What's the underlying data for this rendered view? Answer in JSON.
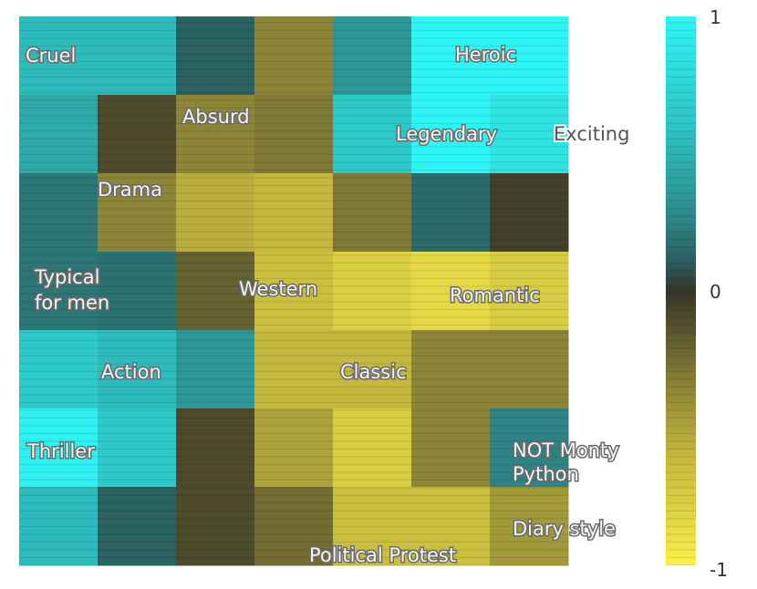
{
  "chart_data": {
    "type": "heatmap",
    "title": "",
    "rows": 7,
    "cols": 7,
    "values": [
      [
        0.55,
        0.55,
        0.12,
        -0.35,
        0.35,
        1.0,
        1.0
      ],
      [
        0.45,
        -0.1,
        -0.35,
        -0.3,
        0.65,
        1.0,
        0.85
      ],
      [
        0.2,
        -0.35,
        -0.55,
        -0.6,
        -0.3,
        0.15,
        -0.05
      ],
      [
        0.2,
        0.18,
        -0.2,
        -0.65,
        -0.78,
        -0.85,
        -0.75
      ],
      [
        0.65,
        0.55,
        0.35,
        -0.6,
        -0.6,
        -0.35,
        -0.35
      ],
      [
        0.95,
        0.65,
        -0.1,
        -0.5,
        -0.75,
        -0.35,
        0.25
      ],
      [
        0.55,
        0.12,
        -0.1,
        -0.25,
        -0.65,
        -0.65,
        -0.45
      ]
    ],
    "annotations": [
      {
        "text": "Cruel",
        "row": 0,
        "col": 0
      },
      {
        "text": "Heroic",
        "row": 0,
        "col": 5
      },
      {
        "text": "Absurd",
        "row": 1,
        "col": 2
      },
      {
        "text": "Legendary",
        "row": 1,
        "col": 5
      },
      {
        "text": "Exciting",
        "row": 1,
        "col": 7
      },
      {
        "text": "Drama",
        "row": 2,
        "col": 1
      },
      {
        "text": "Typical",
        "row": 3,
        "col": 0
      },
      {
        "text": "for men",
        "row": 3,
        "col": 0
      },
      {
        "text": "Western",
        "row": 3,
        "col": 3
      },
      {
        "text": "Romantic",
        "row": 3,
        "col": 6
      },
      {
        "text": "Action",
        "row": 4,
        "col": 1
      },
      {
        "text": "Classic",
        "row": 4,
        "col": 4
      },
      {
        "text": "Thriller",
        "row": 5,
        "col": 0
      },
      {
        "text": "NOT Monty",
        "row": 5,
        "col": 6
      },
      {
        "text": "Python",
        "row": 5,
        "col": 6
      },
      {
        "text": "Diary style",
        "row": 6,
        "col": 6
      },
      {
        "text": "Political Protest",
        "row": 6,
        "col": 4
      }
    ],
    "colorbar": {
      "min": -1,
      "max": 1,
      "ticks": [
        "1",
        "0",
        "-1"
      ],
      "stops": [
        {
          "v": 1.0,
          "color": "#2ff6f6"
        },
        {
          "v": 0.6,
          "color": "#2ec4c4"
        },
        {
          "v": 0.3,
          "color": "#2e8f8f"
        },
        {
          "v": 0.1,
          "color": "#2b5d5d"
        },
        {
          "v": 0.0,
          "color": "#353528"
        },
        {
          "v": -0.15,
          "color": "#5b5630"
        },
        {
          "v": -0.35,
          "color": "#8c8436"
        },
        {
          "v": -0.6,
          "color": "#c4b83e"
        },
        {
          "v": -0.8,
          "color": "#ddd243"
        },
        {
          "v": -1.0,
          "color": "#fbf04a"
        }
      ]
    }
  }
}
